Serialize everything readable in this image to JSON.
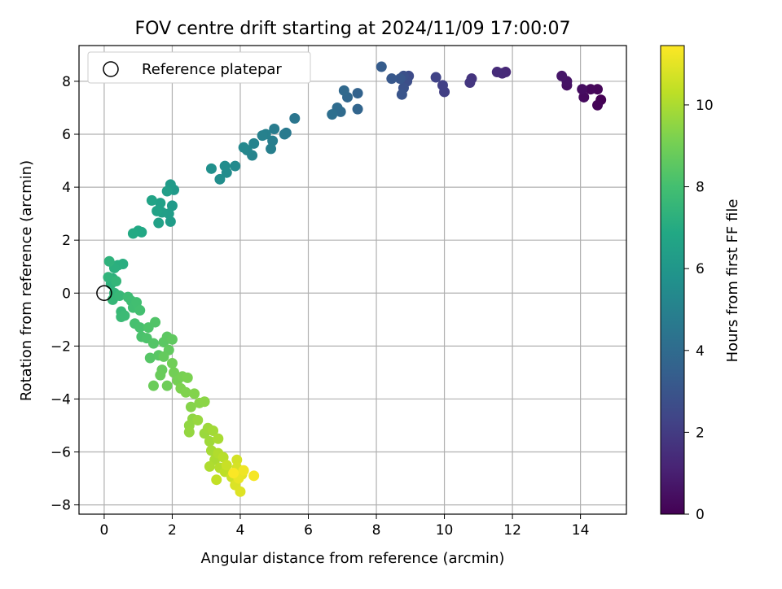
{
  "chart_data": {
    "type": "scatter",
    "title": "FOV centre drift starting at 2024/11/09 17:00:07",
    "xlabel": "Angular distance from reference (arcmin)",
    "ylabel": "Rotation from reference (arcmin)",
    "xlim": [
      -0.74,
      15.35
    ],
    "ylim": [
      -8.35,
      9.35
    ],
    "x_ticks": [
      0,
      2,
      4,
      6,
      8,
      10,
      12,
      14
    ],
    "y_ticks": [
      -8,
      -6,
      -4,
      -2,
      0,
      2,
      4,
      6,
      8
    ],
    "grid": true,
    "legend": {
      "position": "top-left",
      "entries": [
        "Reference platepar"
      ]
    },
    "reference_point": {
      "x": 0,
      "y": 0
    },
    "colorbar": {
      "label": "Hours from first FF file",
      "range": [
        0,
        11.45
      ],
      "ticks": [
        0,
        2,
        4,
        6,
        8,
        10
      ],
      "colormap": "viridis"
    },
    "points": [
      {
        "x": 14.6,
        "y": 7.3,
        "h": 0.0
      },
      {
        "x": 14.5,
        "y": 7.1,
        "h": 0.1
      },
      {
        "x": 14.5,
        "y": 7.7,
        "h": 0.15
      },
      {
        "x": 14.3,
        "y": 7.7,
        "h": 0.2
      },
      {
        "x": 14.1,
        "y": 7.4,
        "h": 0.3
      },
      {
        "x": 14.05,
        "y": 7.7,
        "h": 0.4
      },
      {
        "x": 13.6,
        "y": 7.85,
        "h": 0.5
      },
      {
        "x": 13.6,
        "y": 8.0,
        "h": 0.6
      },
      {
        "x": 13.45,
        "y": 8.2,
        "h": 0.7
      },
      {
        "x": 11.8,
        "y": 8.35,
        "h": 1.3
      },
      {
        "x": 11.7,
        "y": 8.3,
        "h": 1.35
      },
      {
        "x": 11.55,
        "y": 8.35,
        "h": 1.4
      },
      {
        "x": 10.8,
        "y": 8.1,
        "h": 1.7
      },
      {
        "x": 10.75,
        "y": 7.95,
        "h": 1.8
      },
      {
        "x": 10.0,
        "y": 7.6,
        "h": 2.1
      },
      {
        "x": 9.95,
        "y": 7.85,
        "h": 2.2
      },
      {
        "x": 9.75,
        "y": 8.15,
        "h": 2.3
      },
      {
        "x": 8.95,
        "y": 8.2,
        "h": 2.6
      },
      {
        "x": 8.9,
        "y": 8.0,
        "h": 2.7
      },
      {
        "x": 8.8,
        "y": 8.2,
        "h": 2.8
      },
      {
        "x": 8.8,
        "y": 7.75,
        "h": 2.9
      },
      {
        "x": 8.75,
        "y": 7.5,
        "h": 3.0
      },
      {
        "x": 8.7,
        "y": 8.1,
        "h": 3.05
      },
      {
        "x": 8.45,
        "y": 8.1,
        "h": 3.15
      },
      {
        "x": 8.15,
        "y": 8.55,
        "h": 3.3
      },
      {
        "x": 7.45,
        "y": 7.55,
        "h": 3.6
      },
      {
        "x": 7.45,
        "y": 6.95,
        "h": 3.7
      },
      {
        "x": 7.15,
        "y": 7.4,
        "h": 3.8
      },
      {
        "x": 7.05,
        "y": 7.65,
        "h": 3.9
      },
      {
        "x": 6.95,
        "y": 6.85,
        "h": 4.0
      },
      {
        "x": 6.85,
        "y": 7.0,
        "h": 4.05
      },
      {
        "x": 6.7,
        "y": 6.75,
        "h": 4.15
      },
      {
        "x": 5.6,
        "y": 6.6,
        "h": 4.5
      },
      {
        "x": 5.35,
        "y": 6.05,
        "h": 4.6
      },
      {
        "x": 5.3,
        "y": 6.0,
        "h": 4.65
      },
      {
        "x": 5.0,
        "y": 6.2,
        "h": 4.75
      },
      {
        "x": 4.95,
        "y": 5.75,
        "h": 4.85
      },
      {
        "x": 4.9,
        "y": 5.45,
        "h": 4.9
      },
      {
        "x": 4.75,
        "y": 6.0,
        "h": 4.95
      },
      {
        "x": 4.65,
        "y": 5.95,
        "h": 5.0
      },
      {
        "x": 4.4,
        "y": 5.65,
        "h": 5.1
      },
      {
        "x": 4.35,
        "y": 5.2,
        "h": 5.15
      },
      {
        "x": 4.2,
        "y": 5.4,
        "h": 5.2
      },
      {
        "x": 4.1,
        "y": 5.5,
        "h": 5.3
      },
      {
        "x": 3.85,
        "y": 4.8,
        "h": 5.4
      },
      {
        "x": 3.6,
        "y": 4.55,
        "h": 5.5
      },
      {
        "x": 3.55,
        "y": 4.8,
        "h": 5.55
      },
      {
        "x": 3.4,
        "y": 4.3,
        "h": 5.6
      },
      {
        "x": 3.15,
        "y": 4.7,
        "h": 5.7
      },
      {
        "x": 2.05,
        "y": 3.9,
        "h": 6.1
      },
      {
        "x": 2.0,
        "y": 3.3,
        "h": 6.15
      },
      {
        "x": 1.95,
        "y": 4.1,
        "h": 6.2
      },
      {
        "x": 1.95,
        "y": 2.7,
        "h": 6.25
      },
      {
        "x": 1.9,
        "y": 3.0,
        "h": 6.3
      },
      {
        "x": 1.85,
        "y": 3.85,
        "h": 6.35
      },
      {
        "x": 1.7,
        "y": 3.05,
        "h": 6.4
      },
      {
        "x": 1.65,
        "y": 3.4,
        "h": 6.45
      },
      {
        "x": 1.6,
        "y": 2.65,
        "h": 6.5
      },
      {
        "x": 1.55,
        "y": 3.1,
        "h": 6.55
      },
      {
        "x": 1.4,
        "y": 3.5,
        "h": 6.6
      },
      {
        "x": 1.1,
        "y": 2.3,
        "h": 6.8
      },
      {
        "x": 1.0,
        "y": 2.35,
        "h": 6.85
      },
      {
        "x": 0.85,
        "y": 2.25,
        "h": 6.9
      },
      {
        "x": 0.55,
        "y": 1.1,
        "h": 7.1
      },
      {
        "x": 0.4,
        "y": 1.05,
        "h": 7.15
      },
      {
        "x": 0.3,
        "y": 0.95,
        "h": 7.2
      },
      {
        "x": 0.25,
        "y": 0.55,
        "h": 7.25
      },
      {
        "x": 0.2,
        "y": 0.35,
        "h": 7.3
      },
      {
        "x": 0.15,
        "y": 1.2,
        "h": 7.35
      },
      {
        "x": 0.12,
        "y": 0.6,
        "h": 7.4
      },
      {
        "x": 0.3,
        "y": 0.0,
        "h": 7.45
      },
      {
        "x": 0.35,
        "y": 0.45,
        "h": 7.5
      },
      {
        "x": 0.25,
        "y": -0.25,
        "h": 7.55
      },
      {
        "x": 0.45,
        "y": -0.1,
        "h": 7.6
      },
      {
        "x": 0.5,
        "y": -0.7,
        "h": 7.65
      },
      {
        "x": 0.5,
        "y": -0.9,
        "h": 7.7
      },
      {
        "x": 0.6,
        "y": -0.85,
        "h": 7.75
      },
      {
        "x": 0.7,
        "y": -0.15,
        "h": 7.8
      },
      {
        "x": 0.8,
        "y": -0.3,
        "h": 7.85
      },
      {
        "x": 0.85,
        "y": -0.55,
        "h": 7.9
      },
      {
        "x": 0.95,
        "y": -0.35,
        "h": 7.95
      },
      {
        "x": 1.05,
        "y": -0.65,
        "h": 8.0
      },
      {
        "x": 0.9,
        "y": -1.15,
        "h": 8.05
      },
      {
        "x": 1.05,
        "y": -1.3,
        "h": 8.1
      },
      {
        "x": 1.1,
        "y": -1.65,
        "h": 8.15
      },
      {
        "x": 1.25,
        "y": -1.7,
        "h": 8.2
      },
      {
        "x": 1.3,
        "y": -1.3,
        "h": 8.25
      },
      {
        "x": 1.5,
        "y": -1.1,
        "h": 8.3
      },
      {
        "x": 1.45,
        "y": -1.9,
        "h": 8.35
      },
      {
        "x": 1.35,
        "y": -2.45,
        "h": 8.4
      },
      {
        "x": 1.6,
        "y": -2.35,
        "h": 8.45
      },
      {
        "x": 1.75,
        "y": -1.85,
        "h": 8.5
      },
      {
        "x": 1.85,
        "y": -1.65,
        "h": 8.55
      },
      {
        "x": 2.0,
        "y": -1.75,
        "h": 8.6
      },
      {
        "x": 1.9,
        "y": -2.15,
        "h": 8.65
      },
      {
        "x": 1.75,
        "y": -2.4,
        "h": 8.7
      },
      {
        "x": 1.7,
        "y": -2.9,
        "h": 8.75
      },
      {
        "x": 1.65,
        "y": -3.1,
        "h": 8.8
      },
      {
        "x": 1.45,
        "y": -3.5,
        "h": 8.85
      },
      {
        "x": 1.85,
        "y": -3.5,
        "h": 8.9
      },
      {
        "x": 2.0,
        "y": -2.65,
        "h": 8.95
      },
      {
        "x": 2.05,
        "y": -3.0,
        "h": 9.0
      },
      {
        "x": 2.15,
        "y": -3.3,
        "h": 9.05
      },
      {
        "x": 2.3,
        "y": -3.15,
        "h": 9.1
      },
      {
        "x": 2.45,
        "y": -3.2,
        "h": 9.15
      },
      {
        "x": 2.25,
        "y": -3.6,
        "h": 9.2
      },
      {
        "x": 2.4,
        "y": -3.75,
        "h": 9.25
      },
      {
        "x": 2.65,
        "y": -3.8,
        "h": 9.3
      },
      {
        "x": 2.55,
        "y": -4.3,
        "h": 9.35
      },
      {
        "x": 2.8,
        "y": -4.15,
        "h": 9.4
      },
      {
        "x": 2.95,
        "y": -4.1,
        "h": 9.45
      },
      {
        "x": 2.6,
        "y": -4.75,
        "h": 9.5
      },
      {
        "x": 2.5,
        "y": -5.0,
        "h": 9.55
      },
      {
        "x": 2.5,
        "y": -5.25,
        "h": 9.6
      },
      {
        "x": 2.75,
        "y": -4.8,
        "h": 9.65
      },
      {
        "x": 2.95,
        "y": -5.3,
        "h": 9.7
      },
      {
        "x": 3.05,
        "y": -5.1,
        "h": 9.75
      },
      {
        "x": 3.1,
        "y": -5.6,
        "h": 9.8
      },
      {
        "x": 3.2,
        "y": -5.2,
        "h": 9.85
      },
      {
        "x": 3.15,
        "y": -5.95,
        "h": 9.9
      },
      {
        "x": 3.35,
        "y": -5.5,
        "h": 9.95
      },
      {
        "x": 3.25,
        "y": -6.3,
        "h": 10.0
      },
      {
        "x": 3.1,
        "y": -6.55,
        "h": 10.05
      },
      {
        "x": 3.35,
        "y": -6.05,
        "h": 10.1
      },
      {
        "x": 3.4,
        "y": -6.6,
        "h": 10.15
      },
      {
        "x": 3.5,
        "y": -6.2,
        "h": 10.2
      },
      {
        "x": 3.55,
        "y": -6.75,
        "h": 10.3
      },
      {
        "x": 3.3,
        "y": -7.05,
        "h": 10.4
      },
      {
        "x": 3.6,
        "y": -6.5,
        "h": 10.5
      },
      {
        "x": 3.75,
        "y": -6.95,
        "h": 10.6
      },
      {
        "x": 3.9,
        "y": -6.3,
        "h": 10.7
      },
      {
        "x": 3.9,
        "y": -6.6,
        "h": 10.75
      },
      {
        "x": 3.85,
        "y": -7.25,
        "h": 10.85
      },
      {
        "x": 4.0,
        "y": -7.5,
        "h": 10.9
      },
      {
        "x": 4.05,
        "y": -6.85,
        "h": 11.0
      },
      {
        "x": 3.95,
        "y": -7.0,
        "h": 11.1
      },
      {
        "x": 4.1,
        "y": -6.7,
        "h": 11.2
      },
      {
        "x": 4.4,
        "y": -6.9,
        "h": 11.3
      },
      {
        "x": 3.8,
        "y": -6.8,
        "h": 11.4
      }
    ]
  }
}
